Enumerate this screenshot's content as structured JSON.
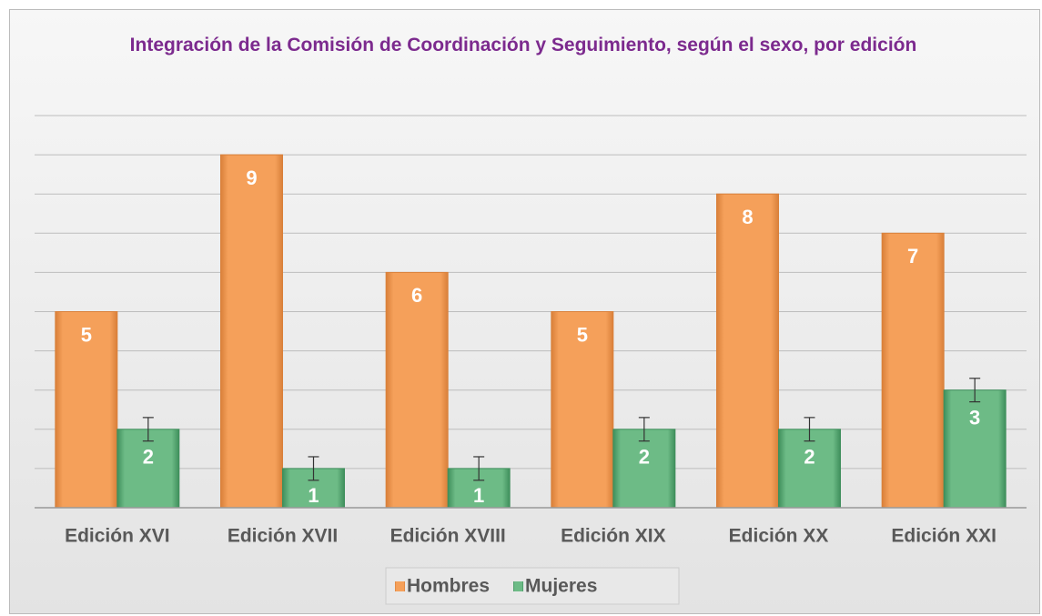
{
  "chart_data": {
    "type": "bar",
    "title": "Integración de la Comisión de Coordinación y Seguimiento, según el sexo, por edición",
    "categories": [
      "Edición XVI",
      "Edición XVII",
      "Edición XVIII",
      "Edición XIX",
      "Edición XX",
      "Edición XXI"
    ],
    "series": [
      {
        "name": "Hombres",
        "color": "#f5a05a",
        "values": [
          5,
          9,
          6,
          5,
          8,
          7
        ]
      },
      {
        "name": "Mujeres",
        "color": "#6dbb86",
        "values": [
          2,
          1,
          1,
          2,
          2,
          3
        ],
        "errors": [
          0.3,
          0.3,
          0.3,
          0.3,
          0.3,
          0.3
        ]
      }
    ],
    "ylim": [
      0,
      10
    ],
    "yticks": [
      0,
      1,
      2,
      3,
      4,
      5,
      6,
      7,
      8,
      9,
      10
    ],
    "grid": true,
    "legend": "bottom"
  }
}
